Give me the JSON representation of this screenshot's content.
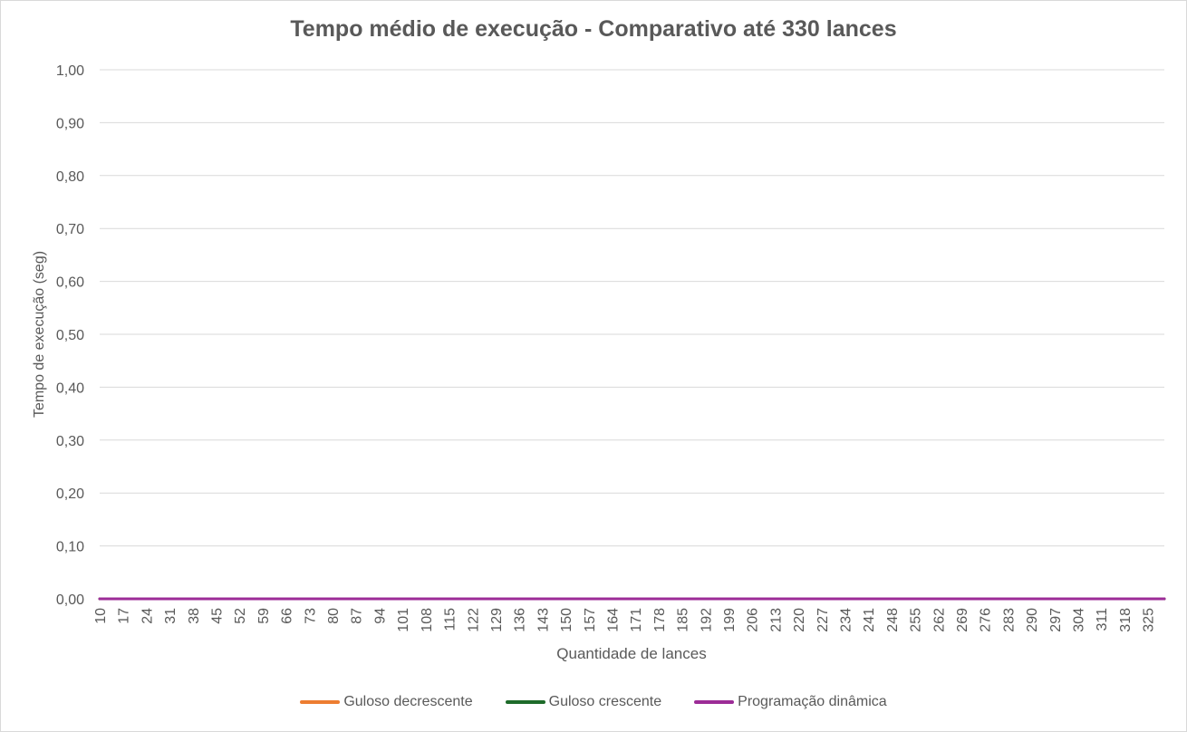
{
  "chart_data": {
    "type": "line",
    "title": "Tempo médio de execução - Comparativo até 330 lances",
    "xlabel": "Quantidade de lances",
    "ylabel": "Tempo de execução (seg)",
    "ylim": [
      0,
      1
    ],
    "y_ticks": [
      "0,00",
      "0,10",
      "0,20",
      "0,30",
      "0,40",
      "0,50",
      "0,60",
      "0,70",
      "0,80",
      "0,90",
      "1,00"
    ],
    "x_tick_labels": [
      "10",
      "17",
      "24",
      "31",
      "38",
      "45",
      "52",
      "59",
      "66",
      "73",
      "80",
      "87",
      "94",
      "101",
      "108",
      "115",
      "122",
      "129",
      "136",
      "143",
      "150",
      "157",
      "164",
      "171",
      "178",
      "185",
      "192",
      "199",
      "206",
      "213",
      "220",
      "227",
      "234",
      "241",
      "248",
      "255",
      "262",
      "269",
      "276",
      "283",
      "290",
      "297",
      "304",
      "311",
      "318",
      "325"
    ],
    "x_range": [
      10,
      330
    ],
    "grid": true,
    "legend_position": "bottom",
    "series": [
      {
        "name": "Guloso decrescente",
        "color": "#ed7d31",
        "value": 0.0
      },
      {
        "name": "Guloso crescente",
        "color": "#1e6b2a",
        "value": 0.0
      },
      {
        "name": "Programação dinâmica",
        "color": "#9c2c97",
        "value": 0.0
      }
    ]
  }
}
